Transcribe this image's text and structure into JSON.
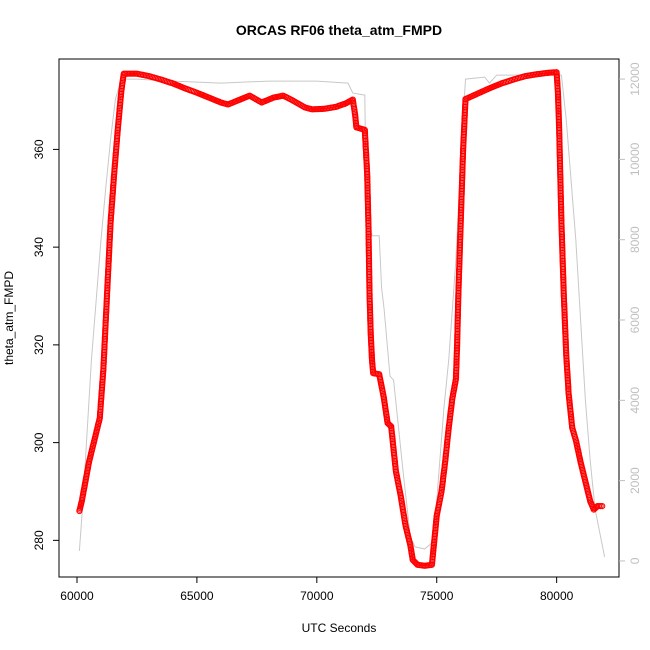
{
  "chart_data": {
    "type": "scatter",
    "title": "ORCAS RF06 theta_atm_FMPD",
    "xlabel": "UTC Seconds",
    "ylabel": "theta_atm_FMPD",
    "xlim": [
      59250,
      82600
    ],
    "ylim": [
      272.5,
      378.5
    ],
    "y2lim": [
      -400,
      12500
    ],
    "x_ticks": [
      60000,
      65000,
      70000,
      75000,
      80000
    ],
    "y_ticks": [
      280,
      300,
      320,
      340,
      360
    ],
    "y2_ticks": [
      0,
      2000,
      4000,
      6000,
      8000,
      10000,
      12000
    ],
    "series": [
      {
        "role": "primary",
        "marker": "open-circle",
        "color": "#ff0000",
        "points": [
          [
            60100,
            286
          ],
          [
            60200,
            288
          ],
          [
            60350,
            292
          ],
          [
            60500,
            296
          ],
          [
            60650,
            299
          ],
          [
            60800,
            302
          ],
          [
            60950,
            305
          ],
          [
            61100,
            315
          ],
          [
            61250,
            330
          ],
          [
            61400,
            345
          ],
          [
            61550,
            355
          ],
          [
            61700,
            364
          ],
          [
            61850,
            372
          ],
          [
            61950,
            375.5
          ],
          [
            62500,
            375.5
          ],
          [
            63000,
            375
          ],
          [
            63500,
            374.3
          ],
          [
            64000,
            373.5
          ],
          [
            64500,
            372.5
          ],
          [
            65000,
            371.6
          ],
          [
            65500,
            370.6
          ],
          [
            66000,
            369.6
          ],
          [
            66300,
            369.2
          ],
          [
            66700,
            370
          ],
          [
            67200,
            371
          ],
          [
            67700,
            369.6
          ],
          [
            68200,
            370.6
          ],
          [
            68600,
            371
          ],
          [
            69000,
            370
          ],
          [
            69500,
            368.6
          ],
          [
            69800,
            368.2
          ],
          [
            70300,
            368.3
          ],
          [
            70800,
            368.7
          ],
          [
            71200,
            369.4
          ],
          [
            71500,
            370.2
          ],
          [
            71600,
            367
          ],
          [
            71650,
            364.5
          ],
          [
            72000,
            364
          ],
          [
            72100,
            355
          ],
          [
            72150,
            345
          ],
          [
            72200,
            330
          ],
          [
            72250,
            322
          ],
          [
            72300,
            317
          ],
          [
            72350,
            314.2
          ],
          [
            72600,
            314
          ],
          [
            72800,
            309
          ],
          [
            72950,
            304
          ],
          [
            73100,
            303.3
          ],
          [
            73300,
            294
          ],
          [
            73500,
            289
          ],
          [
            73700,
            283
          ],
          [
            73900,
            279
          ],
          [
            74000,
            276
          ],
          [
            74200,
            275
          ],
          [
            74500,
            274.8
          ],
          [
            74800,
            275
          ],
          [
            74900,
            280
          ],
          [
            75000,
            285
          ],
          [
            75200,
            290
          ],
          [
            75350,
            296
          ],
          [
            75500,
            303
          ],
          [
            75650,
            309
          ],
          [
            75800,
            313
          ],
          [
            75850,
            320
          ],
          [
            75900,
            330
          ],
          [
            76000,
            345
          ],
          [
            76100,
            360
          ],
          [
            76200,
            370.3
          ],
          [
            76700,
            371.4
          ],
          [
            77200,
            372.5
          ],
          [
            77700,
            373.5
          ],
          [
            78200,
            374.3
          ],
          [
            78700,
            375
          ],
          [
            79200,
            375.4
          ],
          [
            79700,
            375.7
          ],
          [
            80000,
            375.8
          ],
          [
            80050,
            372
          ],
          [
            80100,
            365
          ],
          [
            80150,
            355
          ],
          [
            80200,
            345
          ],
          [
            80300,
            330
          ],
          [
            80400,
            318
          ],
          [
            80500,
            310
          ],
          [
            80650,
            303
          ],
          [
            80800,
            300.5
          ],
          [
            81000,
            296
          ],
          [
            81200,
            292
          ],
          [
            81400,
            288
          ],
          [
            81550,
            286.3
          ],
          [
            81700,
            287
          ],
          [
            81900,
            287
          ]
        ]
      },
      {
        "role": "secondary",
        "marker": "line",
        "color": "#c8c8c8",
        "points": [
          [
            60100,
            250
          ],
          [
            60250,
            1500
          ],
          [
            60400,
            3000
          ],
          [
            60600,
            5000
          ],
          [
            60800,
            6500
          ],
          [
            61000,
            8000
          ],
          [
            61200,
            9300
          ],
          [
            61400,
            10500
          ],
          [
            61600,
            11500
          ],
          [
            61850,
            12000
          ],
          [
            62500,
            12000
          ],
          [
            64000,
            11950
          ],
          [
            66000,
            11900
          ],
          [
            68000,
            11950
          ],
          [
            70000,
            11950
          ],
          [
            71300,
            11900
          ],
          [
            71500,
            11650
          ],
          [
            72000,
            11600
          ],
          [
            72050,
            9400
          ],
          [
            72300,
            8100
          ],
          [
            72600,
            8100
          ],
          [
            72700,
            6800
          ],
          [
            72800,
            6300
          ],
          [
            73050,
            4600
          ],
          [
            73200,
            4500
          ],
          [
            73600,
            2200
          ],
          [
            73900,
            600
          ],
          [
            74100,
            350
          ],
          [
            74500,
            300
          ],
          [
            74800,
            450
          ],
          [
            75000,
            1500
          ],
          [
            75300,
            3800
          ],
          [
            75500,
            5000
          ],
          [
            75800,
            7500
          ],
          [
            76000,
            10000
          ],
          [
            76200,
            12000
          ],
          [
            77000,
            12050
          ],
          [
            77200,
            11900
          ],
          [
            77500,
            12100
          ],
          [
            80200,
            12100
          ],
          [
            80400,
            11000
          ],
          [
            80600,
            9500
          ],
          [
            80800,
            8000
          ],
          [
            81000,
            6000
          ],
          [
            81200,
            4000
          ],
          [
            81400,
            2500
          ],
          [
            81600,
            1300
          ],
          [
            81800,
            700
          ],
          [
            82000,
            100
          ]
        ]
      }
    ]
  }
}
